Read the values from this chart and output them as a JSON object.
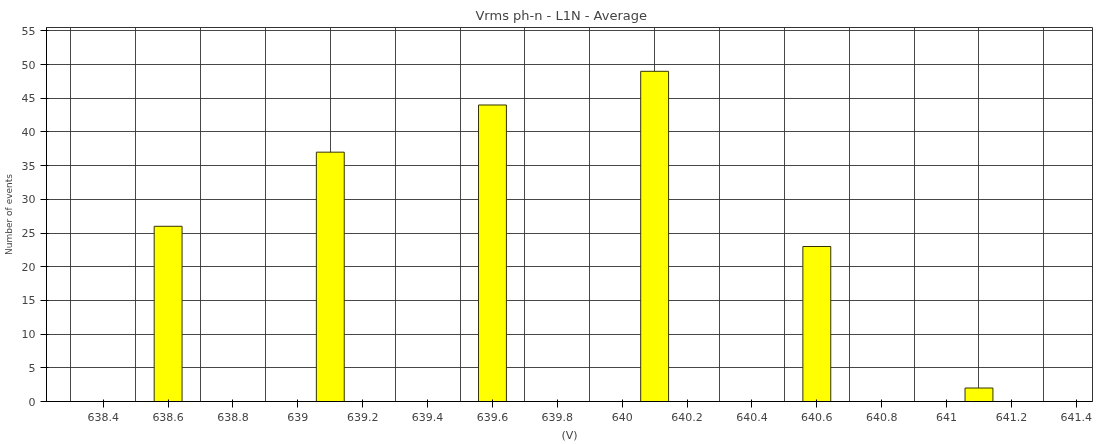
{
  "chart_data": {
    "type": "bar",
    "title": "Vrms ph-n  -  L1N  -  Average",
    "xlabel": "(V)",
    "ylabel": "Number of events",
    "x": [
      638.6,
      638.7,
      638.8,
      638.9,
      639.0,
      639.1,
      639.2,
      639.3,
      639.4,
      639.5,
      639.6,
      639.7,
      639.8,
      639.9,
      640.0,
      640.1,
      640.2,
      640.3,
      640.4,
      640.5,
      640.6,
      640.7,
      640.8,
      640.9,
      641.0,
      641.1
    ],
    "values": [
      26,
      0,
      0,
      0,
      0,
      37,
      0,
      0,
      0,
      0,
      44,
      0,
      0,
      0,
      0,
      49,
      0,
      0,
      0,
      0,
      23,
      0,
      0,
      0,
      0,
      2
    ],
    "color": "#ffff00",
    "xlim": [
      638.225,
      641.45
    ],
    "ylim": [
      0,
      55.5
    ],
    "xticks": [
      638.4,
      638.6,
      638.8,
      639,
      639.2,
      639.4,
      639.6,
      639.8,
      640,
      640.2,
      640.4,
      640.6,
      640.8,
      641,
      641.2,
      641.4
    ],
    "yticks": [
      0,
      5,
      10,
      15,
      20,
      25,
      30,
      35,
      40,
      45,
      50,
      55
    ],
    "grid": true
  }
}
